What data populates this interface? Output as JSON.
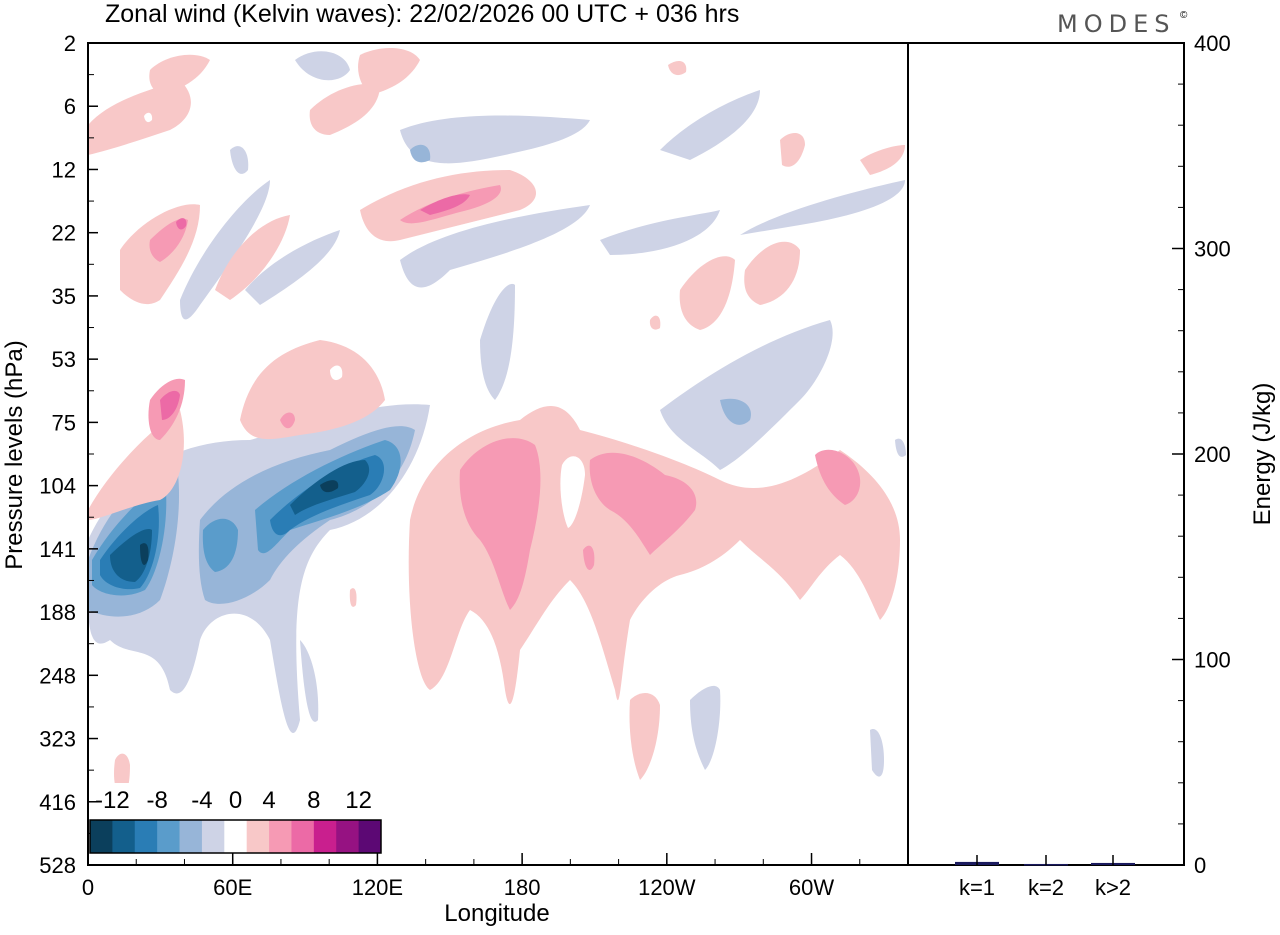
{
  "chart_data": [
    {
      "type": "heatmap",
      "title": "Zonal wind (Kelvin waves):  22/02/2026  00 UTC  + 036 hrs",
      "xlabel": "Longitude",
      "ylabel": "Pressure levels (hPa)",
      "xticks": [
        {
          "lon": 0,
          "label": "0"
        },
        {
          "lon": 60,
          "label": "60E"
        },
        {
          "lon": 120,
          "label": "120E"
        },
        {
          "lon": 180,
          "label": "180"
        },
        {
          "lon": 240,
          "label": "120W"
        },
        {
          "lon": 300,
          "label": "60W"
        }
      ],
      "xlim": [
        0,
        340
      ],
      "yticks": [
        "2",
        "6",
        "12",
        "22",
        "35",
        "53",
        "75",
        "104",
        "141",
        "188",
        "248",
        "323",
        "416",
        "528"
      ],
      "colorbar": {
        "labels": [
          "-12",
          "-8",
          "-4",
          "0",
          "4",
          "8",
          "12"
        ],
        "levels": [
          -14,
          -12,
          -10,
          -8,
          -6,
          -4,
          -2,
          2,
          4,
          6,
          8,
          10,
          12,
          14
        ],
        "colors": [
          "#0b3f5c",
          "#135f8c",
          "#2a7db5",
          "#5a9ccb",
          "#97b5d8",
          "#ced3e6",
          "#ffffff",
          "#f8c8c8",
          "#f69ab4",
          "#ec6aa6",
          "#c91f8e",
          "#961282",
          "#5c0874"
        ]
      },
      "features": [
        {
          "sign": "negative",
          "level": -12,
          "center": {
            "lon": 25,
            "hPa": 141
          },
          "description": "strong easterly anomaly"
        },
        {
          "sign": "negative",
          "level": -12,
          "center": {
            "lon": 105,
            "hPa": 104
          },
          "description": "strong easterly anomaly"
        },
        {
          "sign": "positive",
          "level": 8,
          "center": {
            "lon": 38,
            "hPa": 75
          }
        },
        {
          "sign": "positive",
          "level": 6,
          "center": {
            "lon": 180,
            "hPa": 141
          }
        },
        {
          "sign": "positive",
          "level": 6,
          "center": {
            "lon": 228,
            "hPa": 114
          }
        },
        {
          "sign": "positive",
          "level": 6,
          "center": {
            "lon": 148,
            "hPa": 20
          }
        },
        {
          "sign": "positive",
          "level": 6,
          "center": {
            "lon": 318,
            "hPa": 108
          }
        }
      ]
    },
    {
      "type": "bar",
      "categories": [
        "k=1",
        "k=2",
        "k>2"
      ],
      "values": [
        1.5,
        0.5,
        1.0
      ],
      "ylabel": "Energy (J/kg)",
      "ylim": [
        0,
        400
      ],
      "yticks": [
        "0",
        "100",
        "200",
        "300",
        "400"
      ],
      "bar_color": "#1a1a5e"
    }
  ],
  "brand": "MODES",
  "brand_mark": "©"
}
